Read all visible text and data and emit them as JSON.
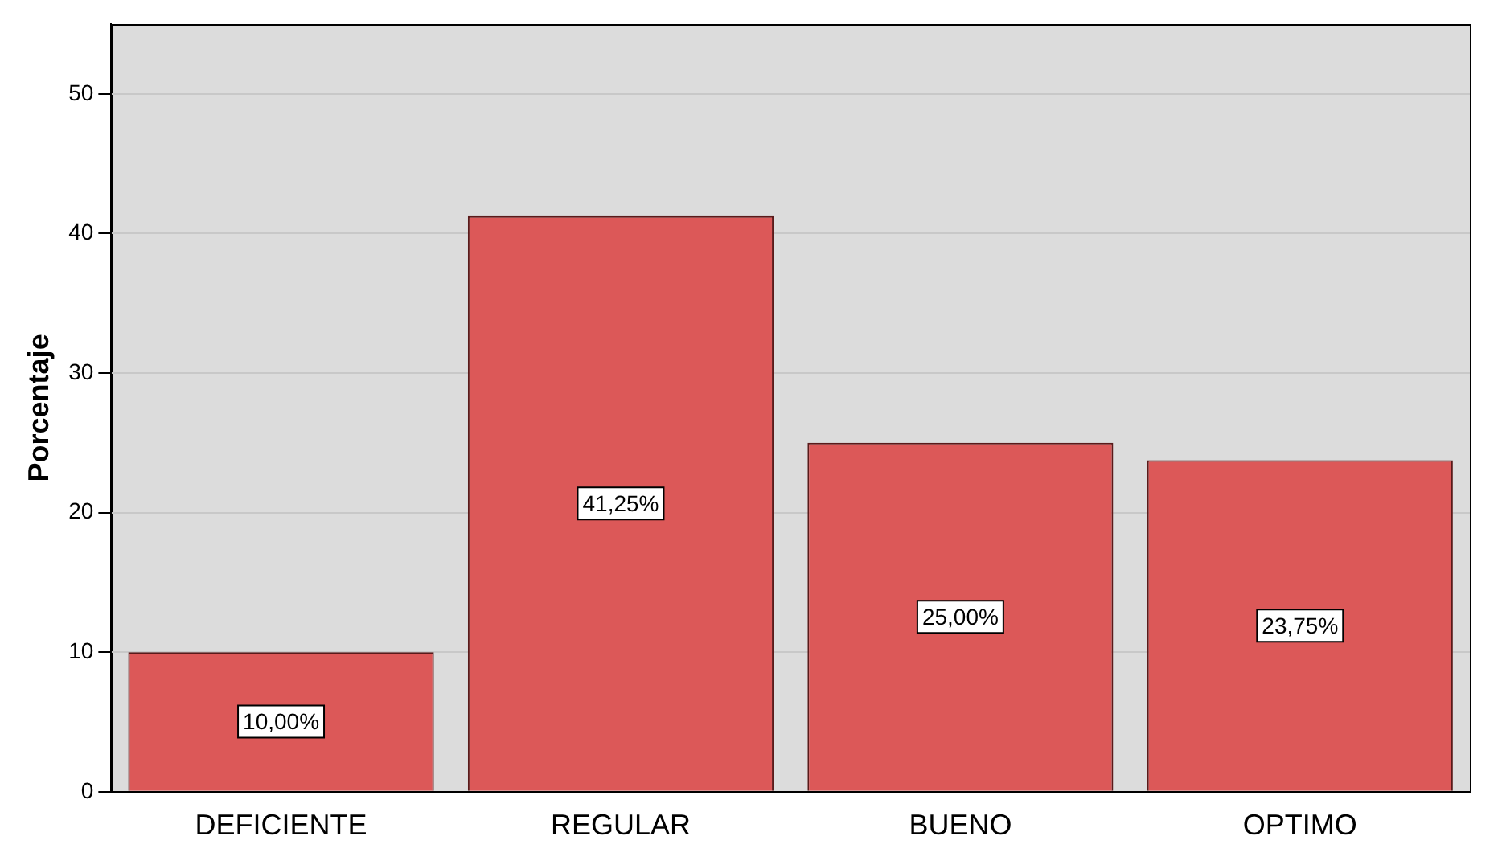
{
  "chart_data": {
    "type": "bar",
    "ylabel": "Porcentaje",
    "categories": [
      "DEFICIENTE",
      "REGULAR",
      "BUENO",
      "OPTIMO"
    ],
    "values": [
      10,
      41.25,
      25,
      23.75
    ],
    "color": "#dc5858",
    "value_labels": [
      "10,00%",
      "41,25%",
      "25,00%",
      "23,75%"
    ],
    "ylim": [
      0,
      55
    ],
    "yticks": [
      0,
      10,
      20,
      30,
      40,
      50
    ],
    "grid": "y",
    "legend": false
  }
}
